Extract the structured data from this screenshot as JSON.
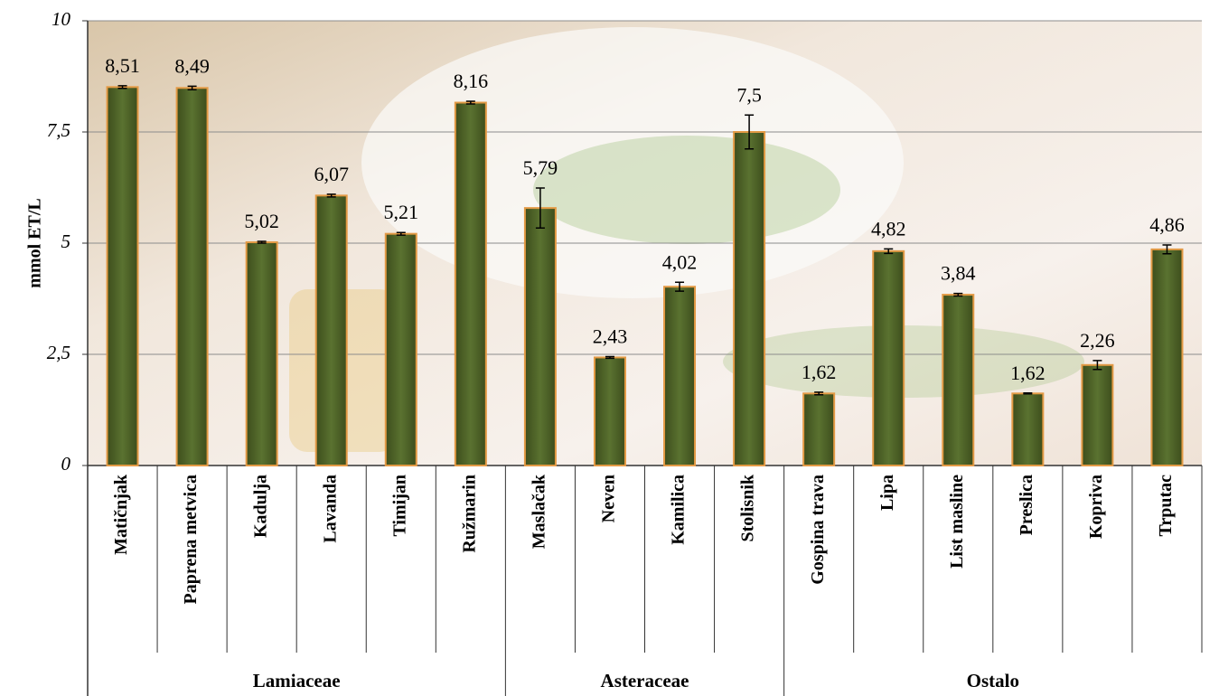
{
  "chart_data": {
    "type": "bar",
    "ylabel": "mmol ET/L",
    "groups": [
      {
        "name": "Lamiaceae",
        "categories": [
          "Matičnjak",
          "Paprena metvica",
          "Kadulja",
          "Lavanda",
          "Timijan",
          "Ružmarin"
        ]
      },
      {
        "name": "Asteraceae",
        "categories": [
          "Maslačak",
          "Neven",
          "Kamilica",
          "Stolisnik"
        ]
      },
      {
        "name": "Ostalo",
        "categories": [
          "Gospina trava",
          "Lipa",
          "List masline",
          "Preslica",
          "Kopriva",
          "Trputac"
        ]
      }
    ],
    "values": [
      8.51,
      8.49,
      5.02,
      6.07,
      5.21,
      8.16,
      5.79,
      2.43,
      4.02,
      7.5,
      1.62,
      4.82,
      3.84,
      1.62,
      2.26,
      4.86
    ],
    "value_labels": [
      "8,51",
      "8,49",
      "5,02",
      "6,07",
      "5,21",
      "8,16",
      "5,79",
      "2,43",
      "4,02",
      "7,5",
      "1,62",
      "4,82",
      "3,84",
      "1,62",
      "2,26",
      "4,86"
    ],
    "errors": [
      0.03,
      0.04,
      0.02,
      0.03,
      0.03,
      0.03,
      0.45,
      0.02,
      0.1,
      0.38,
      0.03,
      0.05,
      0.03,
      0.01,
      0.1,
      0.1
    ],
    "color": "#4f6228",
    "edge_color": "#e39a45",
    "ylim": [
      0,
      10
    ],
    "yticks": [
      0,
      {
        "value": 2.5,
        "label": "2,5"
      },
      5,
      {
        "value": 7.5,
        "label": "7,5"
      },
      10
    ],
    "grid": true
  }
}
